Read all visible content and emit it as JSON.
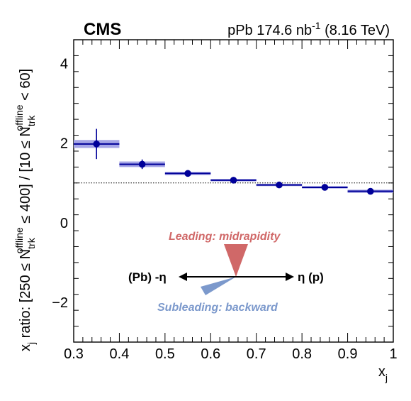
{
  "header": {
    "experiment": "CMS",
    "lumi_prefix": "pPb 174.6 nb",
    "lumi_exponent": "-1",
    "lumi_suffix": " (8.16 TeV)"
  },
  "chart_data": {
    "type": "scatter",
    "xlabel": "x",
    "xlabel_sub": "j",
    "ylabel_parts": {
      "a": "x",
      "a_sub": "j",
      "b": " ratio: [250 ≤ N",
      "b_sub": "trk",
      "b_sup": "offline",
      "c": " ≤ 400] / [10 ≤ N",
      "c_sub": "trk",
      "c_sup": "offline",
      "d": " < 60]"
    },
    "xlim": [
      0.3,
      1.0
    ],
    "ylim": [
      -3,
      4.6
    ],
    "x_ticks": [
      "0.3",
      "0.4",
      "0.5",
      "0.6",
      "0.7",
      "0.8",
      "0.9",
      "1"
    ],
    "y_ticks": [
      "−2",
      "0",
      "2",
      "4"
    ],
    "reference_line": 1,
    "marker_color": "#000099",
    "syst_color": "#a6a6e6",
    "points": [
      {
        "x": 0.35,
        "xlo": 0.3,
        "xhi": 0.4,
        "y": 1.98,
        "stat": 0.38,
        "syst": 0.1
      },
      {
        "x": 0.45,
        "xlo": 0.4,
        "xhi": 0.5,
        "y": 1.47,
        "stat": 0.12,
        "syst": 0.07
      },
      {
        "x": 0.55,
        "xlo": 0.5,
        "xhi": 0.6,
        "y": 1.24,
        "stat": 0.04,
        "syst": 0.04
      },
      {
        "x": 0.65,
        "xlo": 0.6,
        "xhi": 0.7,
        "y": 1.07,
        "stat": 0.03,
        "syst": 0.03
      },
      {
        "x": 0.75,
        "xlo": 0.7,
        "xhi": 0.8,
        "y": 0.95,
        "stat": 0.02,
        "syst": 0.03
      },
      {
        "x": 0.85,
        "xlo": 0.8,
        "xhi": 0.9,
        "y": 0.89,
        "stat": 0.02,
        "syst": 0.03
      },
      {
        "x": 0.95,
        "xlo": 0.9,
        "xhi": 1.0,
        "y": 0.79,
        "stat": 0.02,
        "syst": 0.04
      }
    ]
  },
  "annotations": {
    "leading": "Leading: midrapidity",
    "subleading": "Subleading: backward",
    "left_direction": "(Pb) -η",
    "right_direction": "η (p)",
    "leading_color": "#d06868",
    "subleading_color": "#7c99cc"
  }
}
